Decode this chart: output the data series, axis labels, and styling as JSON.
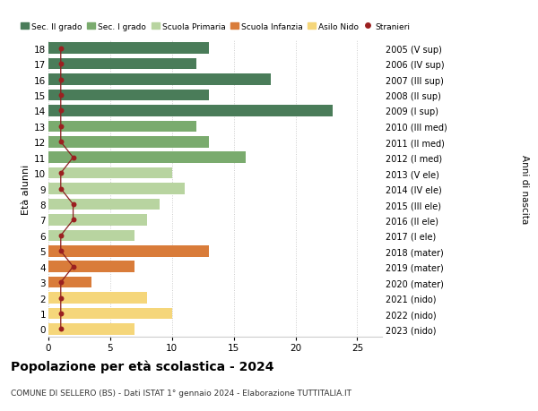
{
  "ages": [
    18,
    17,
    16,
    15,
    14,
    13,
    12,
    11,
    10,
    9,
    8,
    7,
    6,
    5,
    4,
    3,
    2,
    1,
    0
  ],
  "bar_values": [
    13,
    12,
    18,
    13,
    23,
    12,
    13,
    16,
    10,
    11,
    9,
    8,
    7,
    13,
    7,
    3.5,
    8,
    10,
    7
  ],
  "bar_colors": [
    "#4a7c59",
    "#4a7c59",
    "#4a7c59",
    "#4a7c59",
    "#4a7c59",
    "#7aab6e",
    "#7aab6e",
    "#7aab6e",
    "#b8d4a0",
    "#b8d4a0",
    "#b8d4a0",
    "#b8d4a0",
    "#b8d4a0",
    "#d97c3a",
    "#d97c3a",
    "#d97c3a",
    "#f5d67a",
    "#f5d67a",
    "#f5d67a"
  ],
  "right_labels": [
    "2005 (V sup)",
    "2006 (IV sup)",
    "2007 (III sup)",
    "2008 (II sup)",
    "2009 (I sup)",
    "2010 (III med)",
    "2011 (II med)",
    "2012 (I med)",
    "2013 (V ele)",
    "2014 (IV ele)",
    "2015 (III ele)",
    "2016 (II ele)",
    "2017 (I ele)",
    "2018 (mater)",
    "2019 (mater)",
    "2020 (mater)",
    "2021 (nido)",
    "2022 (nido)",
    "2023 (nido)"
  ],
  "stranieri_values": [
    1,
    1,
    1,
    1,
    1,
    1,
    1,
    2,
    1,
    1,
    2,
    2,
    1,
    1,
    2,
    1,
    1,
    1,
    1
  ],
  "legend_labels": [
    "Sec. II grado",
    "Sec. I grado",
    "Scuola Primaria",
    "Scuola Infanzia",
    "Asilo Nido",
    "Stranieri"
  ],
  "legend_colors": [
    "#4a7c59",
    "#7aab6e",
    "#b8d4a0",
    "#d97c3a",
    "#f5d67a",
    "#9b2020"
  ],
  "title": "Popolazione per età scolastica - 2024",
  "subtitle": "COMUNE DI SELLERO (BS) - Dati ISTAT 1° gennaio 2024 - Elaborazione TUTTITALIA.IT",
  "ylabel_left": "Età alunni",
  "ylabel_right": "Anni di nascita",
  "xlim": [
    0,
    27
  ],
  "background_color": "#ffffff",
  "grid_color": "#cccccc",
  "bar_height": 0.72
}
